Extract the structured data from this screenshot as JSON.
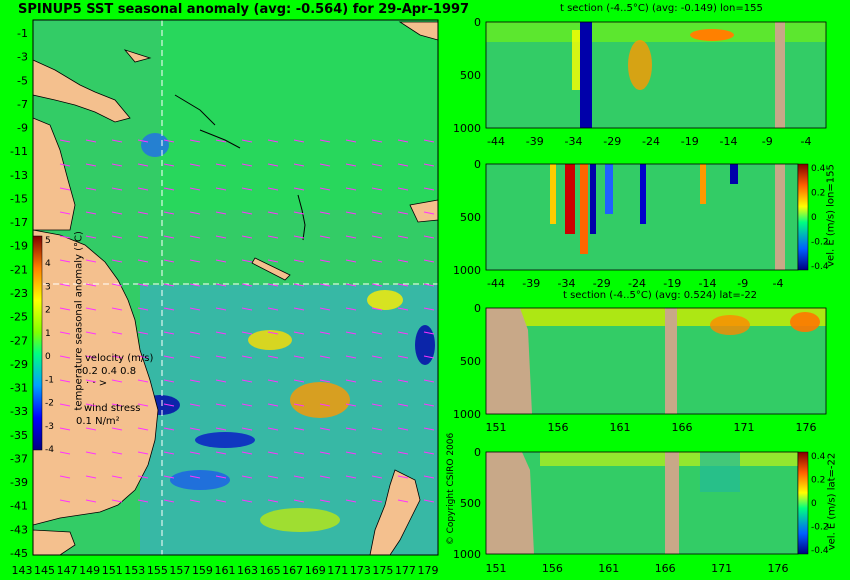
{
  "main_title": "SPINUP5 SST seasonal anomaly (avg: -0.564) for 29-Apr-1997",
  "map": {
    "lat_labels": [
      "-1",
      "-3",
      "-5",
      "-7",
      "-9",
      "-11",
      "-13",
      "-15",
      "-17",
      "-19",
      "-21",
      "-23",
      "-25",
      "-27",
      "-29",
      "-31",
      "-33",
      "-35",
      "-37",
      "-39",
      "-41",
      "-43",
      "-45"
    ],
    "lon_labels": [
      "143",
      "145",
      "147",
      "149",
      "151",
      "153",
      "155",
      "157",
      "159",
      "161",
      "163",
      "165",
      "167",
      "169",
      "171",
      "173",
      "175",
      "177",
      "179"
    ],
    "colorbar_ticks": [
      "5",
      "4",
      "3",
      "2",
      "1",
      "0",
      "-1",
      "-2",
      "-3",
      "-4"
    ],
    "colorbar_label": "temperature seasonal anomaly (°C)",
    "velocity_legend_title": "velocity (m/s)",
    "velocity_legend_values": "0.2 0.4 0.8",
    "wind_stress_title": "wind stress",
    "wind_stress_value": "0.1 N/m²",
    "copyright": "© Copyright CSIRO 2006"
  },
  "panels": [
    {
      "title": "t section (-4..5°C) (avg: -0.149) lon=155",
      "x_ticks": [
        "-44",
        "-39",
        "-34",
        "-29",
        "-24",
        "-19",
        "-14",
        "-9",
        "-4"
      ],
      "y_ticks": [
        "0",
        "500",
        "1000"
      ]
    },
    {
      "title": "",
      "x_ticks": [
        "-44",
        "-39",
        "-34",
        "-29",
        "-24",
        "-19",
        "-14",
        "-9",
        "-4"
      ],
      "y_ticks": [
        "0",
        "500",
        "1000"
      ],
      "colorbar_ticks": [
        "0.4",
        "0.2",
        "0",
        "-0.2",
        "-0.4"
      ],
      "colorbar_label": "vel. E (m/s) lon=155"
    },
    {
      "title": "t section (-4..5°C) (avg: 0.524) lat=-22",
      "x_ticks": [
        "151",
        "156",
        "161",
        "166",
        "171",
        "176"
      ],
      "y_ticks": [
        "0",
        "500",
        "1000"
      ]
    },
    {
      "title": "",
      "x_ticks": [
        "151",
        "156",
        "161",
        "166",
        "171",
        "176"
      ],
      "y_ticks": [
        "0",
        "500",
        "1000"
      ],
      "colorbar_ticks": [
        "0.4",
        "0.2",
        "0",
        "-0.2",
        "-0.4"
      ],
      "colorbar_label": "vel. E (m/s) lat=-22"
    }
  ],
  "colors": {
    "background": "#00ff00",
    "land": "#f4c08e",
    "section_land": "#c8a888",
    "ocean_green": "#33cc66"
  }
}
